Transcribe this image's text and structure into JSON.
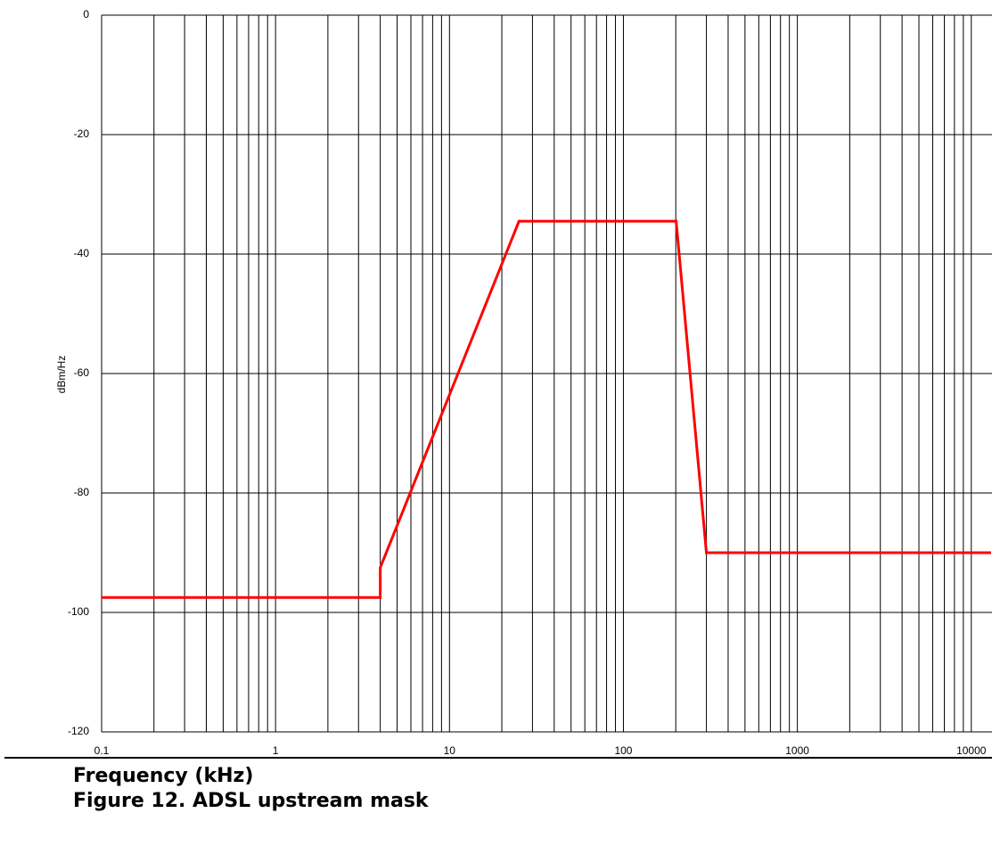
{
  "chart_data": {
    "type": "line",
    "x_label": "Frequency (kHz)",
    "y_label": "dBm/Hz",
    "caption": "Figure 12. ADSL upstream mask",
    "x": [
      0.1,
      4,
      4,
      25.1,
      201,
      300,
      13000
    ],
    "values": [
      -97.5,
      -97.5,
      -92.5,
      -34.5,
      -34.5,
      -90,
      -90
    ],
    "color": "#ff0000",
    "xscale": "log",
    "xlim": [
      0.1,
      13000
    ],
    "xticks": [
      0.1,
      1,
      10,
      100,
      1000,
      10000
    ],
    "xminor_ticks": [
      0.2,
      0.3,
      0.4,
      0.5,
      0.6,
      0.7,
      0.8,
      0.9,
      2,
      3,
      4,
      5,
      6,
      7,
      8,
      9,
      20,
      30,
      40,
      50,
      60,
      70,
      80,
      90,
      200,
      300,
      400,
      500,
      600,
      700,
      800,
      900,
      2000,
      3000,
      4000,
      5000,
      6000,
      7000,
      8000,
      9000
    ],
    "ylim": [
      -120,
      0
    ],
    "yticks": [
      0,
      -20,
      -40,
      -60,
      -80,
      -100,
      -120
    ],
    "grid": true
  }
}
